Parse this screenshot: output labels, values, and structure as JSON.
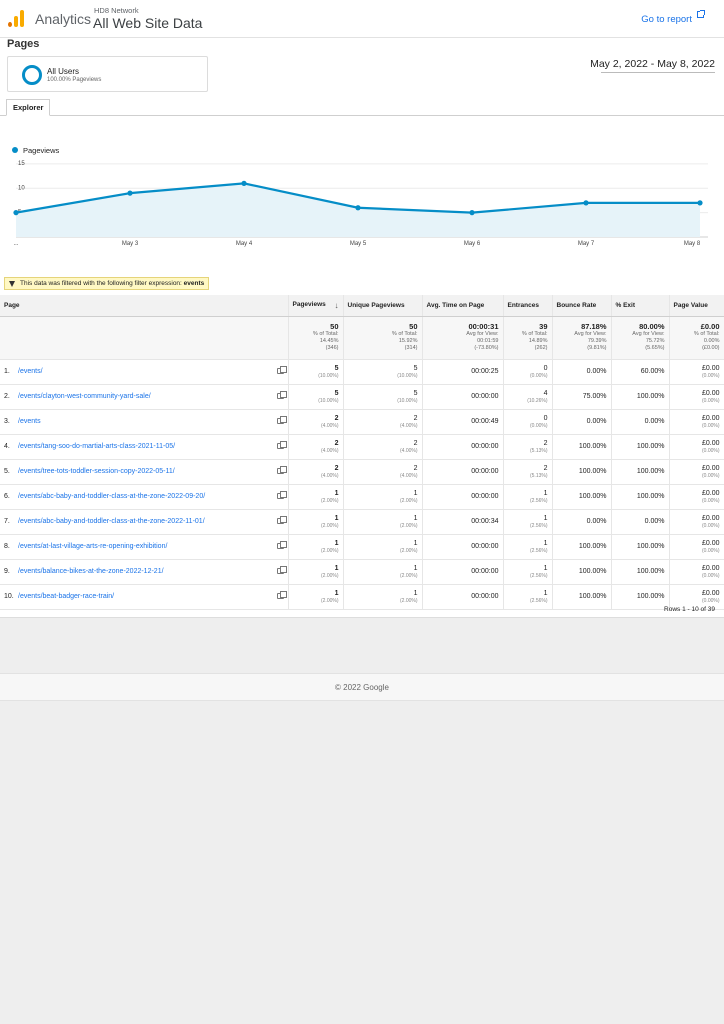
{
  "header": {
    "app_name": "Analytics",
    "account": "HD8 Network",
    "property": "All Web Site Data",
    "goto_report": "Go to report"
  },
  "page_title": "Pages",
  "segment": {
    "name": "All Users",
    "sub": "100.00% Pageviews"
  },
  "date_range": "May 2, 2022 - May 8, 2022",
  "tab_label": "Explorer",
  "chart_data": {
    "type": "area",
    "series": [
      {
        "name": "Pageviews",
        "values": [
          5,
          9,
          11,
          6,
          5,
          7,
          7
        ]
      }
    ],
    "x": [
      "...",
      "May 3",
      "May 4",
      "May 5",
      "May 6",
      "May 7",
      "May 8"
    ],
    "y_ticks": [
      5,
      10,
      15
    ],
    "ylim": [
      0,
      16
    ],
    "color": "#058dc7",
    "fill": "#e6f3f9",
    "grid": true,
    "legend": "top-left"
  },
  "filter": {
    "text": "This data was filtered with the following filter expression:",
    "expr": "events"
  },
  "table": {
    "headers": [
      "Page",
      "Pageviews",
      "Unique Pageviews",
      "Avg. Time on Page",
      "Entrances",
      "Bounce Rate",
      "% Exit",
      "Page Value"
    ],
    "totals": [
      {
        "main": "50",
        "sub": [
          "% of Total:",
          "14.45%",
          "(346)"
        ]
      },
      {
        "main": "50",
        "sub": [
          "% of Total:",
          "15.92%",
          "(314)"
        ]
      },
      {
        "main": "00:00:31",
        "sub": [
          "Avg for View:",
          "00:01:59",
          "(-73.80%)"
        ]
      },
      {
        "main": "39",
        "sub": [
          "% of Total:",
          "14.89%",
          "(262)"
        ]
      },
      {
        "main": "87.18%",
        "sub": [
          "Avg for View:",
          "79.39%",
          "(9.81%)"
        ]
      },
      {
        "main": "80.00%",
        "sub": [
          "Avg for View:",
          "75.72%",
          "(5.65%)"
        ]
      },
      {
        "main": "£0.00",
        "sub": [
          "% of Total:",
          "0.00%",
          "(£0.00)"
        ]
      }
    ],
    "rows": [
      {
        "n": "1.",
        "page": "/events/",
        "pv": "5",
        "pv_pct": "(10.00%)",
        "upv": "5",
        "upv_pct": "(10.00%)",
        "time": "00:00:25",
        "ent": "0",
        "ent_pct": "(0.00%)",
        "bounce": "0.00%",
        "exit": "60.00%",
        "value": "£0.00",
        "value_pct": "(0.00%)"
      },
      {
        "n": "2.",
        "page": "/events/clayton-west-community-yard-sale/",
        "pv": "5",
        "pv_pct": "(10.00%)",
        "upv": "5",
        "upv_pct": "(10.00%)",
        "time": "00:00:00",
        "ent": "4",
        "ent_pct": "(10.26%)",
        "bounce": "75.00%",
        "exit": "100.00%",
        "value": "£0.00",
        "value_pct": "(0.00%)"
      },
      {
        "n": "3.",
        "page": "/events",
        "pv": "2",
        "pv_pct": "(4.00%)",
        "upv": "2",
        "upv_pct": "(4.00%)",
        "time": "00:00:49",
        "ent": "0",
        "ent_pct": "(0.00%)",
        "bounce": "0.00%",
        "exit": "0.00%",
        "value": "£0.00",
        "value_pct": "(0.00%)"
      },
      {
        "n": "4.",
        "page": "/events/tang-soo-do-martial-arts-class-2021-11-05/",
        "pv": "2",
        "pv_pct": "(4.00%)",
        "upv": "2",
        "upv_pct": "(4.00%)",
        "time": "00:00:00",
        "ent": "2",
        "ent_pct": "(5.13%)",
        "bounce": "100.00%",
        "exit": "100.00%",
        "value": "£0.00",
        "value_pct": "(0.00%)"
      },
      {
        "n": "5.",
        "page": "/events/tree-tots-toddler-session-copy-2022-05-11/",
        "pv": "2",
        "pv_pct": "(4.00%)",
        "upv": "2",
        "upv_pct": "(4.00%)",
        "time": "00:00:00",
        "ent": "2",
        "ent_pct": "(5.13%)",
        "bounce": "100.00%",
        "exit": "100.00%",
        "value": "£0.00",
        "value_pct": "(0.00%)"
      },
      {
        "n": "6.",
        "page": "/events/abc-baby-and-toddler-class-at-the-zone-2022-09-20/",
        "pv": "1",
        "pv_pct": "(2.00%)",
        "upv": "1",
        "upv_pct": "(2.00%)",
        "time": "00:00:00",
        "ent": "1",
        "ent_pct": "(2.56%)",
        "bounce": "100.00%",
        "exit": "100.00%",
        "value": "£0.00",
        "value_pct": "(0.00%)"
      },
      {
        "n": "7.",
        "page": "/events/abc-baby-and-toddler-class-at-the-zone-2022-11-01/",
        "pv": "1",
        "pv_pct": "(2.00%)",
        "upv": "1",
        "upv_pct": "(2.00%)",
        "time": "00:00:34",
        "ent": "1",
        "ent_pct": "(2.56%)",
        "bounce": "0.00%",
        "exit": "0.00%",
        "value": "£0.00",
        "value_pct": "(0.00%)"
      },
      {
        "n": "8.",
        "page": "/events/at-last-village-arts-re-opening-exhibition/",
        "pv": "1",
        "pv_pct": "(2.00%)",
        "upv": "1",
        "upv_pct": "(2.00%)",
        "time": "00:00:00",
        "ent": "1",
        "ent_pct": "(2.56%)",
        "bounce": "100.00%",
        "exit": "100.00%",
        "value": "£0.00",
        "value_pct": "(0.00%)"
      },
      {
        "n": "9.",
        "page": "/events/balance-bikes-at-the-zone-2022-12-21/",
        "pv": "1",
        "pv_pct": "(2.00%)",
        "upv": "1",
        "upv_pct": "(2.00%)",
        "time": "00:00:00",
        "ent": "1",
        "ent_pct": "(2.56%)",
        "bounce": "100.00%",
        "exit": "100.00%",
        "value": "£0.00",
        "value_pct": "(0.00%)"
      },
      {
        "n": "10.",
        "page": "/events/beat-badger-race-train/",
        "pv": "1",
        "pv_pct": "(2.00%)",
        "upv": "1",
        "upv_pct": "(2.00%)",
        "time": "00:00:00",
        "ent": "1",
        "ent_pct": "(2.56%)",
        "bounce": "100.00%",
        "exit": "100.00%",
        "value": "£0.00",
        "value_pct": "(0.00%)"
      }
    ]
  },
  "rows_info": "Rows 1 - 10 of 39",
  "footer": "© 2022 Google"
}
